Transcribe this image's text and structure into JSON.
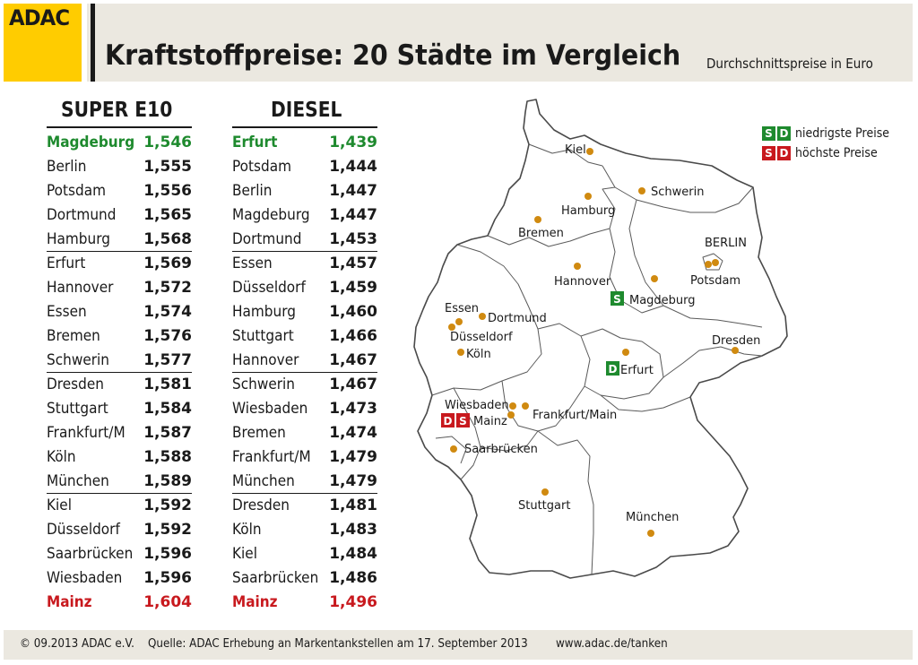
{
  "header": {
    "logo": "ADAC",
    "title": "Kraftstoffpreise: 20 Städte im Vergleich",
    "subtitle": "Durchschnittspreise in Euro"
  },
  "tables": {
    "super": {
      "heading": "SUPER E10",
      "rows": [
        {
          "city": "Magdeburg",
          "price": "1,546"
        },
        {
          "city": "Berlin",
          "price": "1,555"
        },
        {
          "city": "Potsdam",
          "price": "1,556"
        },
        {
          "city": "Dortmund",
          "price": "1,565"
        },
        {
          "city": "Hamburg",
          "price": "1,568"
        },
        {
          "city": "Erfurt",
          "price": "1,569"
        },
        {
          "city": "Hannover",
          "price": "1,572"
        },
        {
          "city": "Essen",
          "price": "1,574"
        },
        {
          "city": "Bremen",
          "price": "1,576"
        },
        {
          "city": "Schwerin",
          "price": "1,577"
        },
        {
          "city": "Dresden",
          "price": "1,581"
        },
        {
          "city": "Stuttgart",
          "price": "1,584"
        },
        {
          "city": "Frankfurt/M",
          "price": "1,587"
        },
        {
          "city": "Köln",
          "price": "1,588"
        },
        {
          "city": "München",
          "price": "1,589"
        },
        {
          "city": "Kiel",
          "price": "1,592"
        },
        {
          "city": "Düsseldorf",
          "price": "1,592"
        },
        {
          "city": "Saarbrücken",
          "price": "1,596"
        },
        {
          "city": "Wiesbaden",
          "price": "1,596"
        },
        {
          "city": "Mainz",
          "price": "1,604"
        }
      ]
    },
    "diesel": {
      "heading": "DIESEL",
      "rows": [
        {
          "city": "Erfurt",
          "price": "1,439"
        },
        {
          "city": "Potsdam",
          "price": "1,444"
        },
        {
          "city": "Berlin",
          "price": "1,447"
        },
        {
          "city": "Magdeburg",
          "price": "1,447"
        },
        {
          "city": "Dortmund",
          "price": "1,453"
        },
        {
          "city": "Essen",
          "price": "1,457"
        },
        {
          "city": "Düsseldorf",
          "price": "1,459"
        },
        {
          "city": "Hamburg",
          "price": "1,460"
        },
        {
          "city": "Stuttgart",
          "price": "1,466"
        },
        {
          "city": "Hannover",
          "price": "1,467"
        },
        {
          "city": "Schwerin",
          "price": "1,467"
        },
        {
          "city": "Wiesbaden",
          "price": "1,473"
        },
        {
          "city": "Bremen",
          "price": "1,474"
        },
        {
          "city": "Frankfurt/M",
          "price": "1,479"
        },
        {
          "city": "München",
          "price": "1,479"
        },
        {
          "city": "Dresden",
          "price": "1,481"
        },
        {
          "city": "Köln",
          "price": "1,483"
        },
        {
          "city": "Kiel",
          "price": "1,484"
        },
        {
          "city": "Saarbrücken",
          "price": "1,486"
        },
        {
          "city": "Mainz",
          "price": "1,496"
        }
      ]
    }
  },
  "map": {
    "labels": {
      "kiel": "Kiel",
      "schwerin": "Schwerin",
      "hamburg": "Hamburg",
      "bremen": "Bremen",
      "berlin": "BERLIN",
      "potsdam": "Potsdam",
      "hannover": "Hannover",
      "magdeburg": "Magdeburg",
      "essen": "Essen",
      "dortmund": "Dortmund",
      "duesseldorf": "Düsseldorf",
      "koeln": "Köln",
      "dresden": "Dresden",
      "erfurt": "Erfurt",
      "wiesbaden": "Wiesbaden",
      "mainz": "Mainz",
      "frankfurt": "Frankfurt/Main",
      "saarbruecken": "Saarbrücken",
      "stuttgart": "Stuttgart",
      "muenchen": "München"
    },
    "badges": {
      "s": "S",
      "d": "D"
    }
  },
  "legend": {
    "lowest": "niedrigste Preise",
    "highest": "höchste Preise",
    "s": "S",
    "d": "D"
  },
  "footer": {
    "copyright": "© 09.2013  ADAC e.V.",
    "source": "Quelle: ADAC Erhebung an Markentankstellen am 17. September 2013",
    "url": "www.adac.de/tanken"
  },
  "colors": {
    "brand_yellow": "#ffcc00",
    "lowest_green": "#1e8a2e",
    "highest_red": "#c8191e",
    "city_dot": "#d08a10",
    "panel_beige": "#ebe8e0"
  }
}
